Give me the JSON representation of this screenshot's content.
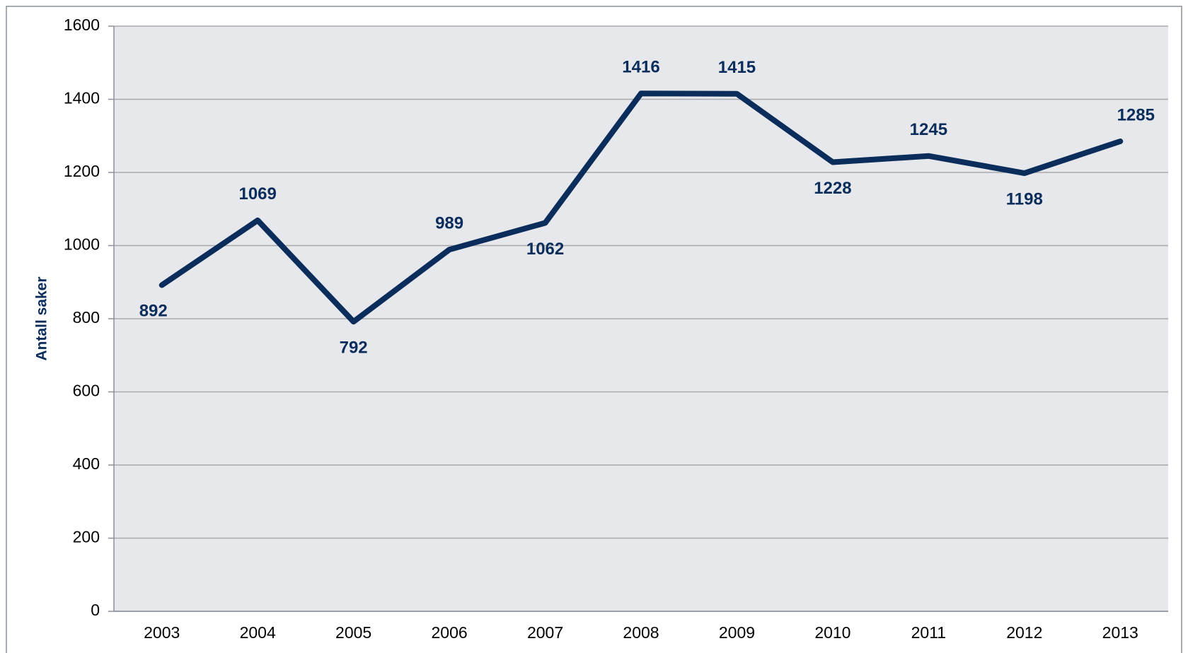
{
  "chart_data": {
    "type": "line",
    "y_label": "Antall saker",
    "categories": [
      "2003",
      "2004",
      "2005",
      "2006",
      "2007",
      "2008",
      "2009",
      "2010",
      "2011",
      "2012",
      "2013"
    ],
    "values": [
      892,
      1069,
      792,
      989,
      1062,
      1416,
      1415,
      1228,
      1245,
      1198,
      1285
    ],
    "color": "#0b2d5b",
    "ylim": [
      0,
      1600
    ],
    "yticks": [
      0,
      200,
      400,
      600,
      800,
      1000,
      1200,
      1400,
      1600
    ],
    "grid": true
  }
}
